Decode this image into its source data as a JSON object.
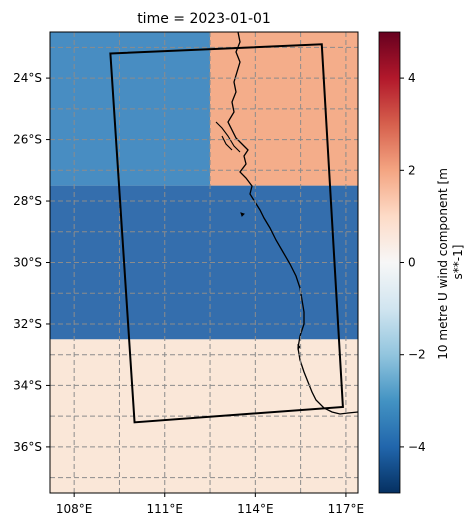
{
  "title": "time = 2023-01-01",
  "map": {
    "lat_labels": [
      "24°S",
      "26°S",
      "28°S",
      "30°S",
      "32°S",
      "34°S",
      "36°S"
    ],
    "lon_labels": [
      "108°E",
      "111°E",
      "114°E",
      "117°E"
    ],
    "lat_values": [
      -24,
      -26,
      -28,
      -30,
      -32,
      -34,
      -36
    ],
    "lon_values": [
      108,
      111,
      114,
      117
    ],
    "extent": {
      "lon": [
        107.2,
        117.4
      ],
      "lat": [
        -37.5,
        -22.5
      ]
    },
    "ocean_color": "#2f7ab7",
    "land_color": "#f2eed6",
    "grid_style": "dashed grey"
  },
  "colorbar": {
    "label": "10 metre U wind component [m s**-1]",
    "ticks": [
      "4",
      "2",
      "0",
      "−2",
      "−4"
    ],
    "tick_values": [
      4,
      2,
      0,
      -2,
      -4
    ],
    "range": [
      -5,
      5
    ],
    "colormap": "RdBu_r"
  },
  "field": {
    "cells": [
      {
        "lon0": 107.2,
        "lon1": 112.5,
        "lat0": -27.5,
        "lat1": -22.5,
        "value": -3.6,
        "color": "#3582c0"
      },
      {
        "lon0": 112.5,
        "lon1": 117.4,
        "lat0": -27.5,
        "lat1": -22.5,
        "value": 1.8,
        "color": "#f4a582"
      },
      {
        "lon0": 107.2,
        "lon1": 117.4,
        "lat0": -32.5,
        "lat1": -27.5,
        "value": -4.2,
        "color": "#1f5fa8"
      },
      {
        "lon0": 107.2,
        "lon1": 117.4,
        "lat0": -37.5,
        "lat1": -32.5,
        "value": 0.5,
        "color": "#fbe5d8"
      }
    ]
  },
  "region_outline": {
    "corners_lonlat": [
      [
        109.2,
        -23.2
      ],
      [
        116.2,
        -22.9
      ],
      [
        116.9,
        -34.7
      ],
      [
        110.0,
        -35.2
      ]
    ]
  }
}
